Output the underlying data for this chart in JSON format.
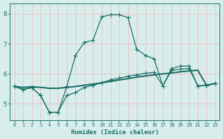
{
  "xlabel": "Humidex (Indice chaleur)",
  "xlim": [
    -0.5,
    23.5
  ],
  "ylim": [
    4.45,
    8.35
  ],
  "yticks": [
    5,
    6,
    7,
    8
  ],
  "xticks": [
    0,
    1,
    2,
    3,
    4,
    5,
    6,
    7,
    8,
    9,
    10,
    11,
    12,
    13,
    14,
    15,
    16,
    17,
    18,
    19,
    20,
    21,
    22,
    23
  ],
  "background_color": "#d8eeed",
  "grid_color": "#c0d8d6",
  "line_color": "#1a6e65",
  "curve_upper_x": [
    0,
    1,
    2,
    3,
    4,
    5,
    6,
    7,
    8,
    9,
    10,
    11,
    12,
    13,
    14,
    15,
    16,
    17,
    18,
    19,
    20,
    21,
    22,
    23
  ],
  "curve_upper_y": [
    5.58,
    5.48,
    5.54,
    5.28,
    4.72,
    4.72,
    5.58,
    6.62,
    7.05,
    7.12,
    7.9,
    7.97,
    7.97,
    7.88,
    6.82,
    6.62,
    6.5,
    5.6,
    6.18,
    6.26,
    6.26,
    5.6,
    5.62,
    5.68
  ],
  "curve_lower_x": [
    0,
    1,
    2,
    3,
    4,
    5,
    6,
    7,
    8,
    9,
    10,
    11,
    12,
    13,
    14,
    15,
    16,
    17,
    18,
    19,
    20,
    21,
    22,
    23
  ],
  "curve_lower_y": [
    5.58,
    5.48,
    5.54,
    5.28,
    4.72,
    4.72,
    5.28,
    5.38,
    5.55,
    5.62,
    5.7,
    5.8,
    5.86,
    5.92,
    5.97,
    6.02,
    6.05,
    5.6,
    6.12,
    6.16,
    6.18,
    5.6,
    5.62,
    5.68
  ],
  "trend_x": [
    0,
    1,
    2,
    3,
    4,
    5,
    6,
    7,
    8,
    9,
    10,
    11,
    12,
    13,
    14,
    15,
    16,
    17,
    18,
    19,
    20,
    21,
    22,
    23
  ],
  "trend_y": [
    5.58,
    5.55,
    5.57,
    5.55,
    5.52,
    5.52,
    5.55,
    5.58,
    5.62,
    5.66,
    5.7,
    5.75,
    5.8,
    5.84,
    5.89,
    5.93,
    5.97,
    6.0,
    6.03,
    6.07,
    6.1,
    6.12,
    5.62,
    5.68
  ]
}
